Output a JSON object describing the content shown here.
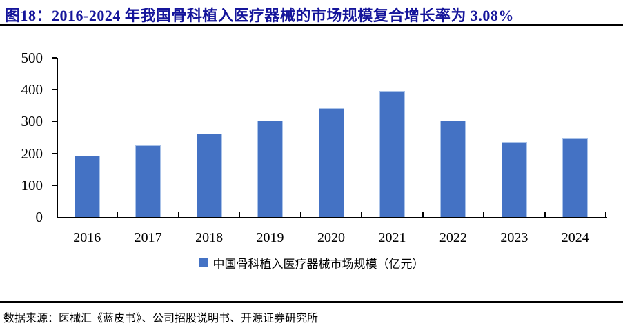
{
  "figure": {
    "title": "图18：2016-2024 年我国骨科植入医疗器械的市场规模复合增长率为 3.08%",
    "source": "数据来源：医械汇《蓝皮书》、公司招股说明书、开源证券研究所"
  },
  "chart_data": {
    "type": "bar",
    "title": "图18：2016-2024 年我国骨科植入医疗器械的市场规模复合增长率为 3.08%",
    "categories": [
      "2016",
      "2017",
      "2018",
      "2019",
      "2020",
      "2021",
      "2022",
      "2023",
      "2024"
    ],
    "series": [
      {
        "name": "中国骨科植入医疗器械市场规模（亿元）",
        "values": [
          193,
          225,
          262,
          304,
          342,
          397,
          304,
          237,
          246
        ]
      }
    ],
    "xlabel": "",
    "ylabel": "",
    "ylim": [
      0,
      500
    ],
    "yticks": [
      0,
      100,
      200,
      300,
      400,
      500
    ],
    "grid": false,
    "legend_position": "bottom"
  },
  "colors": {
    "title_text": "#15159B",
    "bar_fill": "#4472C4",
    "bar_edge": "#A9C2E8",
    "axis": "#000000",
    "divider_rule": "#000000"
  }
}
